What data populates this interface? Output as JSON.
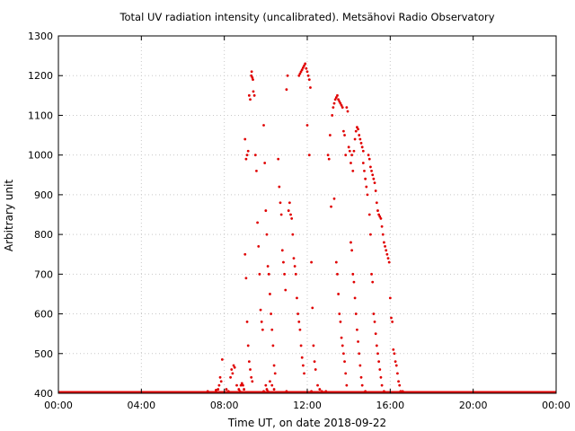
{
  "chart_data": {
    "type": "scatter",
    "title": "Total UV radiation intensity (uncalibrated). Metsähovi Radio Observatory",
    "xlabel": "Time UT, on date 2018-09-22",
    "ylabel": "Arbitrary unit",
    "xlim": [
      0,
      24
    ],
    "ylim": [
      400,
      1300
    ],
    "x_ticks": [
      0,
      4,
      8,
      12,
      16,
      20,
      24
    ],
    "x_tick_labels": [
      "00:00",
      "04:00",
      "08:00",
      "12:00",
      "16:00",
      "20:00",
      "00:00"
    ],
    "y_ticks": [
      400,
      500,
      600,
      700,
      800,
      900,
      1000,
      1100,
      1200,
      1300
    ],
    "y_tick_labels": [
      "400",
      "500",
      "600",
      "700",
      "800",
      "900",
      "1000",
      "1100",
      "1200",
      "1300"
    ],
    "grid": true,
    "color": "#e00000",
    "baseline": {
      "y": 400,
      "x_from": 0,
      "x_to": 24
    },
    "points": [
      [
        7.7,
        410
      ],
      [
        7.75,
        420
      ],
      [
        7.8,
        440
      ],
      [
        7.85,
        430
      ],
      [
        7.9,
        485
      ],
      [
        8.0,
        402
      ],
      [
        8.1,
        410
      ],
      [
        8.2,
        405
      ],
      [
        8.3,
        440
      ],
      [
        8.35,
        460
      ],
      [
        8.4,
        450
      ],
      [
        8.45,
        470
      ],
      [
        8.5,
        465
      ],
      [
        8.6,
        420
      ],
      [
        8.65,
        402
      ],
      [
        8.7,
        410
      ],
      [
        8.75,
        405
      ],
      [
        8.8,
        420
      ],
      [
        8.85,
        425
      ],
      [
        8.9,
        420
      ],
      [
        8.95,
        410
      ],
      [
        9.0,
        1040
      ],
      [
        9.05,
        990
      ],
      [
        9.1,
        1000
      ],
      [
        9.15,
        1010
      ],
      [
        9.2,
        1150
      ],
      [
        9.25,
        1140
      ],
      [
        9.3,
        1200
      ],
      [
        9.32,
        1210
      ],
      [
        9.35,
        1195
      ],
      [
        9.38,
        1190
      ],
      [
        9.4,
        1160
      ],
      [
        9.45,
        1150
      ],
      [
        9.5,
        1000
      ],
      [
        9.55,
        960
      ],
      [
        9.6,
        830
      ],
      [
        9.65,
        770
      ],
      [
        9.7,
        700
      ],
      [
        9.75,
        610
      ],
      [
        9.8,
        580
      ],
      [
        9.85,
        560
      ],
      [
        9.0,
        750
      ],
      [
        9.05,
        690
      ],
      [
        9.1,
        580
      ],
      [
        9.15,
        520
      ],
      [
        9.2,
        480
      ],
      [
        9.25,
        460
      ],
      [
        9.3,
        440
      ],
      [
        9.35,
        430
      ],
      [
        9.9,
        1075
      ],
      [
        9.95,
        980
      ],
      [
        10.0,
        860
      ],
      [
        10.05,
        800
      ],
      [
        10.1,
        720
      ],
      [
        10.15,
        700
      ],
      [
        10.2,
        650
      ],
      [
        10.25,
        600
      ],
      [
        10.3,
        560
      ],
      [
        10.35,
        520
      ],
      [
        10.4,
        470
      ],
      [
        10.45,
        450
      ],
      [
        10.0,
        420
      ],
      [
        10.05,
        410
      ],
      [
        10.1,
        405
      ],
      [
        10.2,
        430
      ],
      [
        10.3,
        420
      ],
      [
        10.4,
        410
      ],
      [
        10.5,
        402
      ],
      [
        10.6,
        990
      ],
      [
        10.65,
        920
      ],
      [
        10.7,
        880
      ],
      [
        10.75,
        850
      ],
      [
        10.8,
        760
      ],
      [
        10.85,
        730
      ],
      [
        10.9,
        700
      ],
      [
        10.95,
        660
      ],
      [
        11.0,
        1165
      ],
      [
        11.05,
        1200
      ],
      [
        11.1,
        860
      ],
      [
        11.15,
        880
      ],
      [
        11.2,
        850
      ],
      [
        11.25,
        840
      ],
      [
        11.3,
        800
      ],
      [
        11.35,
        740
      ],
      [
        11.4,
        720
      ],
      [
        11.45,
        700
      ],
      [
        11.5,
        640
      ],
      [
        11.55,
        600
      ],
      [
        11.6,
        580
      ],
      [
        11.65,
        560
      ],
      [
        11.7,
        520
      ],
      [
        11.75,
        490
      ],
      [
        11.8,
        470
      ],
      [
        11.85,
        450
      ],
      [
        11.6,
        1200
      ],
      [
        11.65,
        1205
      ],
      [
        11.7,
        1210
      ],
      [
        11.75,
        1215
      ],
      [
        11.8,
        1220
      ],
      [
        11.85,
        1225
      ],
      [
        11.9,
        1230
      ],
      [
        11.95,
        1218
      ],
      [
        12.0,
        1210
      ],
      [
        12.05,
        1200
      ],
      [
        12.1,
        1190
      ],
      [
        12.15,
        1170
      ],
      [
        12.0,
        1075
      ],
      [
        12.1,
        1000
      ],
      [
        12.2,
        730
      ],
      [
        12.25,
        615
      ],
      [
        12.3,
        520
      ],
      [
        12.35,
        480
      ],
      [
        12.4,
        460
      ],
      [
        12.5,
        420
      ],
      [
        12.6,
        410
      ],
      [
        12.7,
        405
      ],
      [
        12.8,
        402
      ],
      [
        13.0,
        1000
      ],
      [
        13.05,
        990
      ],
      [
        13.1,
        1050
      ],
      [
        13.15,
        870
      ],
      [
        13.2,
        1100
      ],
      [
        13.25,
        1120
      ],
      [
        13.3,
        1130
      ],
      [
        13.35,
        1140
      ],
      [
        13.4,
        1145
      ],
      [
        13.45,
        1150
      ],
      [
        13.5,
        1140
      ],
      [
        13.55,
        1135
      ],
      [
        13.6,
        1130
      ],
      [
        13.65,
        1125
      ],
      [
        13.7,
        1120
      ],
      [
        13.75,
        1060
      ],
      [
        13.8,
        1050
      ],
      [
        13.85,
        1000
      ],
      [
        13.9,
        1120
      ],
      [
        13.95,
        1110
      ],
      [
        13.3,
        890
      ],
      [
        13.4,
        730
      ],
      [
        13.45,
        700
      ],
      [
        13.5,
        650
      ],
      [
        13.55,
        600
      ],
      [
        13.6,
        580
      ],
      [
        13.65,
        540
      ],
      [
        13.7,
        520
      ],
      [
        13.75,
        500
      ],
      [
        13.8,
        480
      ],
      [
        13.85,
        450
      ],
      [
        13.9,
        420
      ],
      [
        14.0,
        1020
      ],
      [
        14.05,
        1010
      ],
      [
        14.1,
        980
      ],
      [
        14.15,
        1000
      ],
      [
        14.2,
        960
      ],
      [
        14.25,
        1010
      ],
      [
        14.3,
        1040
      ],
      [
        14.35,
        1060
      ],
      [
        14.4,
        1070
      ],
      [
        14.45,
        1065
      ],
      [
        14.5,
        1050
      ],
      [
        14.55,
        1040
      ],
      [
        14.6,
        1030
      ],
      [
        14.65,
        1020
      ],
      [
        14.7,
        1010
      ],
      [
        14.1,
        780
      ],
      [
        14.15,
        760
      ],
      [
        14.2,
        700
      ],
      [
        14.25,
        680
      ],
      [
        14.3,
        640
      ],
      [
        14.35,
        600
      ],
      [
        14.4,
        560
      ],
      [
        14.45,
        530
      ],
      [
        14.5,
        500
      ],
      [
        14.55,
        470
      ],
      [
        14.6,
        440
      ],
      [
        14.65,
        420
      ],
      [
        14.7,
        980
      ],
      [
        14.75,
        960
      ],
      [
        14.8,
        940
      ],
      [
        14.85,
        920
      ],
      [
        14.9,
        900
      ],
      [
        14.95,
        1000
      ],
      [
        15.0,
        990
      ],
      [
        15.05,
        970
      ],
      [
        15.1,
        960
      ],
      [
        15.15,
        950
      ],
      [
        15.2,
        940
      ],
      [
        15.25,
        930
      ],
      [
        15.3,
        910
      ],
      [
        15.35,
        880
      ],
      [
        15.4,
        860
      ],
      [
        15.45,
        850
      ],
      [
        15.5,
        845
      ],
      [
        15.55,
        840
      ],
      [
        15.6,
        820
      ],
      [
        15.65,
        800
      ],
      [
        15.7,
        780
      ],
      [
        15.75,
        770
      ],
      [
        15.8,
        760
      ],
      [
        15.85,
        750
      ],
      [
        15.9,
        740
      ],
      [
        15.95,
        730
      ],
      [
        15.0,
        850
      ],
      [
        15.05,
        800
      ],
      [
        15.1,
        700
      ],
      [
        15.15,
        680
      ],
      [
        15.2,
        600
      ],
      [
        15.25,
        580
      ],
      [
        15.3,
        550
      ],
      [
        15.35,
        520
      ],
      [
        15.4,
        500
      ],
      [
        15.45,
        480
      ],
      [
        15.5,
        460
      ],
      [
        15.55,
        440
      ],
      [
        15.6,
        420
      ],
      [
        16.0,
        640
      ],
      [
        16.05,
        590
      ],
      [
        16.1,
        580
      ],
      [
        16.15,
        510
      ],
      [
        16.2,
        500
      ],
      [
        16.25,
        480
      ],
      [
        16.3,
        470
      ],
      [
        16.35,
        450
      ],
      [
        16.4,
        430
      ],
      [
        16.45,
        420
      ],
      [
        16.5,
        405
      ],
      [
        16.55,
        402
      ],
      [
        7.0,
        402
      ],
      [
        7.2,
        405
      ],
      [
        7.4,
        402
      ],
      [
        7.6,
        408
      ],
      [
        8.05,
        402
      ],
      [
        8.25,
        402
      ],
      [
        9.6,
        402
      ],
      [
        9.9,
        405
      ],
      [
        10.7,
        402
      ],
      [
        11.0,
        405
      ],
      [
        11.3,
        402
      ],
      [
        12.2,
        405
      ],
      [
        12.4,
        402
      ],
      [
        12.9,
        405
      ],
      [
        13.1,
        402
      ],
      [
        14.0,
        402
      ],
      [
        14.8,
        405
      ],
      [
        15.1,
        402
      ],
      [
        15.7,
        405
      ],
      [
        16.6,
        405
      ],
      [
        16.8,
        402
      ]
    ]
  }
}
